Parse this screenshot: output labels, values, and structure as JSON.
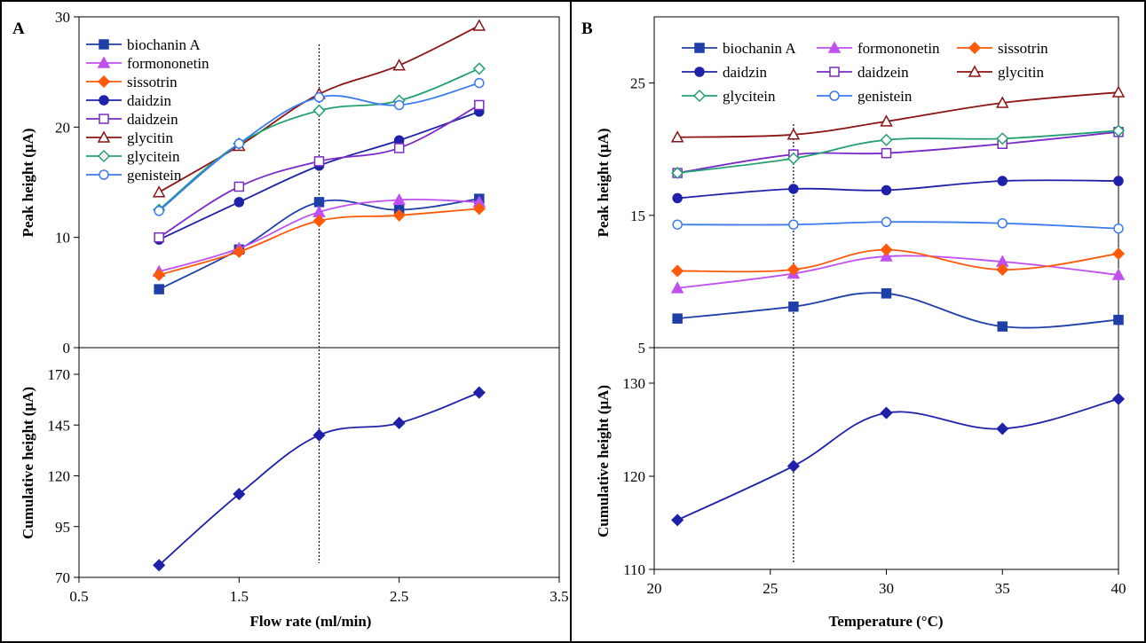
{
  "chart_data": [
    {
      "type": "line",
      "panel": "A",
      "part": "top",
      "title": "",
      "xlabel": "Flow rate (ml/min)",
      "ylabel": "Peak height (μA)",
      "xlim": [
        0.5,
        3.5
      ],
      "ylim": [
        0,
        30
      ],
      "xticks": [
        "0.5",
        "1.5",
        "2.5",
        "3.5"
      ],
      "yticks": [
        "0",
        "10",
        "20",
        "30"
      ],
      "x": [
        1.0,
        1.5,
        2.0,
        2.5,
        3.0
      ],
      "reference_x": 2.0,
      "legend_position": "top-left",
      "grid": false,
      "series": [
        {
          "name": "biochanin A",
          "values": [
            5.3,
            8.9,
            13.2,
            12.5,
            13.5
          ],
          "color": "#1f3fa8",
          "marker": "square-filled"
        },
        {
          "name": "formononetin",
          "values": [
            6.9,
            9.0,
            12.3,
            13.4,
            13.2
          ],
          "color": "#c04ff0",
          "marker": "triangle-filled"
        },
        {
          "name": "sissotrin",
          "values": [
            6.6,
            8.7,
            11.5,
            12.0,
            12.6
          ],
          "color": "#ff5a0a",
          "marker": "diamond-filled"
        },
        {
          "name": "daidzin",
          "values": [
            9.8,
            13.2,
            16.5,
            18.8,
            21.4
          ],
          "color": "#1f22a8",
          "marker": "circle-filled"
        },
        {
          "name": "daidzein",
          "values": [
            10.0,
            14.6,
            16.9,
            18.1,
            22.0
          ],
          "color": "#7a2ac8",
          "marker": "square-open"
        },
        {
          "name": "glycitin",
          "values": [
            14.1,
            18.3,
            23.0,
            25.6,
            29.2
          ],
          "color": "#8b1414",
          "marker": "triangle-open"
        },
        {
          "name": "glycitein",
          "values": [
            12.5,
            18.5,
            21.5,
            22.4,
            25.3
          ],
          "color": "#22a070",
          "marker": "diamond-open"
        },
        {
          "name": "genistein",
          "values": [
            12.4,
            18.5,
            22.7,
            22.0,
            24.0
          ],
          "color": "#3a7bf0",
          "marker": "circle-open"
        }
      ]
    },
    {
      "type": "line",
      "panel": "A",
      "part": "bottom",
      "title": "",
      "xlabel": "Flow rate (ml/min)",
      "ylabel": "Cumulative height (μA)",
      "xlim": [
        0.5,
        3.5
      ],
      "ylim": [
        70,
        170
      ],
      "yticks": [
        "70",
        "95",
        "120",
        "145",
        "170"
      ],
      "x": [
        1.0,
        1.5,
        2.0,
        2.5,
        3.0
      ],
      "reference_x": 2.0,
      "grid": false,
      "series": [
        {
          "name": "",
          "values": [
            76.0,
            111.0,
            140.0,
            146.0,
            161.0
          ],
          "color": "#1f22a8",
          "marker": "diamond-filled"
        }
      ]
    },
    {
      "type": "line",
      "panel": "B",
      "part": "top",
      "title": "",
      "xlabel": "Temperature (°C)",
      "ylabel": "Peak height (μA)",
      "xlim": [
        20,
        40
      ],
      "ylim": [
        5,
        30
      ],
      "xticks": [
        "20",
        "25",
        "30",
        "35",
        "40"
      ],
      "yticks": [
        "5",
        "15",
        "25"
      ],
      "x": [
        21,
        26,
        30,
        35,
        40
      ],
      "reference_x": 26,
      "legend_position": "top",
      "grid": false,
      "series": [
        {
          "name": "biochanin A",
          "values": [
            7.2,
            8.1,
            9.1,
            6.6,
            7.1
          ],
          "color": "#1f3fa8",
          "marker": "square-filled"
        },
        {
          "name": "formononetin",
          "values": [
            9.5,
            10.6,
            11.9,
            11.5,
            10.5
          ],
          "color": "#c04ff0",
          "marker": "triangle-filled"
        },
        {
          "name": "sissotrin",
          "values": [
            10.8,
            10.9,
            12.4,
            10.9,
            12.1
          ],
          "color": "#ff5a0a",
          "marker": "diamond-filled"
        },
        {
          "name": "daidzin",
          "values": [
            16.3,
            17.0,
            16.9,
            17.6,
            17.6
          ],
          "color": "#1f22a8",
          "marker": "circle-filled"
        },
        {
          "name": "daidzein",
          "values": [
            18.2,
            19.6,
            19.7,
            20.4,
            21.3
          ],
          "color": "#7a2ac8",
          "marker": "square-open"
        },
        {
          "name": "glycitin",
          "values": [
            20.9,
            21.1,
            22.1,
            23.5,
            24.3
          ],
          "color": "#8b1414",
          "marker": "triangle-open"
        },
        {
          "name": "glycitein",
          "values": [
            18.2,
            19.3,
            20.7,
            20.8,
            21.4
          ],
          "color": "#22a070",
          "marker": "diamond-open"
        },
        {
          "name": "genistein",
          "values": [
            14.3,
            14.3,
            14.5,
            14.4,
            14.0
          ],
          "color": "#3a7bf0",
          "marker": "circle-open"
        }
      ]
    },
    {
      "type": "line",
      "panel": "B",
      "part": "bottom",
      "title": "",
      "xlabel": "Temperature (°C)",
      "ylabel": "Cumulative height (μA)",
      "xlim": [
        20,
        40
      ],
      "ylim": [
        110,
        130
      ],
      "yticks": [
        "110",
        "120",
        "130"
      ],
      "x": [
        21,
        26,
        30,
        35,
        40
      ],
      "reference_x": 26,
      "grid": false,
      "series": [
        {
          "name": "",
          "values": [
            115.3,
            121.1,
            126.8,
            125.1,
            128.3
          ],
          "color": "#1f22a8",
          "marker": "diamond-filled"
        }
      ]
    }
  ],
  "panel_labels": [
    "A",
    "B"
  ]
}
